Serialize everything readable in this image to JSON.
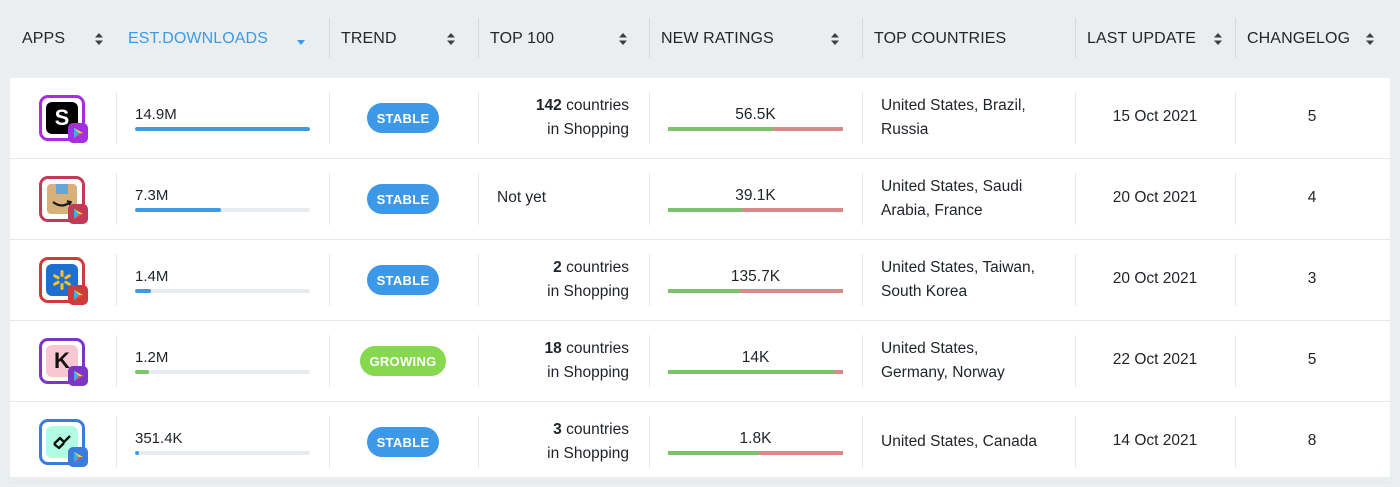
{
  "header": {
    "apps": "APPS",
    "est_downloads": "EST.DOWNLOADS",
    "trend": "TREND",
    "top100": "TOP 100",
    "new_ratings": "NEW RATINGS",
    "top_countries": "TOP COUNTRIES",
    "last_update": "LAST UPDATE",
    "changelog": "CHANGELOG"
  },
  "colors": {
    "accent": "#3a9be8",
    "stable": "#3d99e8",
    "growing": "#86d84e",
    "ratings_positive": "#7cc36c",
    "ratings_negative": "#d9898a"
  },
  "rows": [
    {
      "icon": "shein-app-icon",
      "icon_letter": "S",
      "downloads": "14.9M",
      "downloads_level": 1.0,
      "trend": "STABLE",
      "top100_count": "142",
      "top100_suffix": "countries",
      "top100_line2": "in Shopping",
      "top100_notyet": "",
      "ratings": "56.5K",
      "ratings_positive_share": 0.6,
      "countries": "United States, Brazil, Russia",
      "countries_l1": "United States, Brazil,",
      "countries_l2": "Russia",
      "last_update": "15 Oct 2021",
      "changelog": "5"
    },
    {
      "icon": "amazon-app-icon",
      "icon_letter": "",
      "downloads": "7.3M",
      "downloads_level": 0.49,
      "trend": "STABLE",
      "top100_count": "",
      "top100_suffix": "",
      "top100_line2": "",
      "top100_notyet": "Not yet",
      "ratings": "39.1K",
      "ratings_positive_share": 0.42,
      "countries": "United States, Saudi Arabia, France",
      "countries_l1": "United States, Saudi",
      "countries_l2": "Arabia, France",
      "last_update": "20 Oct 2021",
      "changelog": "4"
    },
    {
      "icon": "walmart-app-icon",
      "icon_letter": "",
      "downloads": "1.4M",
      "downloads_level": 0.094,
      "trend": "STABLE",
      "top100_count": "2",
      "top100_suffix": "countries",
      "top100_line2": "in Shopping",
      "top100_notyet": "",
      "ratings": "135.7K",
      "ratings_positive_share": 0.41,
      "countries": "United States, Taiwan, South Korea",
      "countries_l1": "United States, Taiwan,",
      "countries_l2": "South Korea",
      "last_update": "20 Oct 2021",
      "changelog": "3"
    },
    {
      "icon": "klarna-app-icon",
      "icon_letter": "K",
      "downloads": "1.2M",
      "downloads_level": 0.08,
      "trend": "GROWING",
      "top100_count": "18",
      "top100_suffix": "countries",
      "top100_line2": "in Shopping",
      "top100_notyet": "",
      "ratings": "14K",
      "ratings_positive_share": 0.95,
      "countries": "United States, Germany, Norway",
      "countries_l1": "United States,",
      "countries_l2": "Germany, Norway",
      "last_update": "22 Oct 2021",
      "changelog": "5"
    },
    {
      "icon": "afterpay-app-icon",
      "icon_letter": "",
      "downloads": "351.4K",
      "downloads_level": 0.023,
      "trend": "STABLE",
      "top100_count": "3",
      "top100_suffix": "countries",
      "top100_line2": "in Shopping",
      "top100_notyet": "",
      "ratings": "1.8K",
      "ratings_positive_share": 0.52,
      "countries": "United States, Canada",
      "countries_l1": "United States, Canada",
      "countries_l2": "",
      "last_update": "14 Oct 2021",
      "changelog": "8"
    }
  ]
}
